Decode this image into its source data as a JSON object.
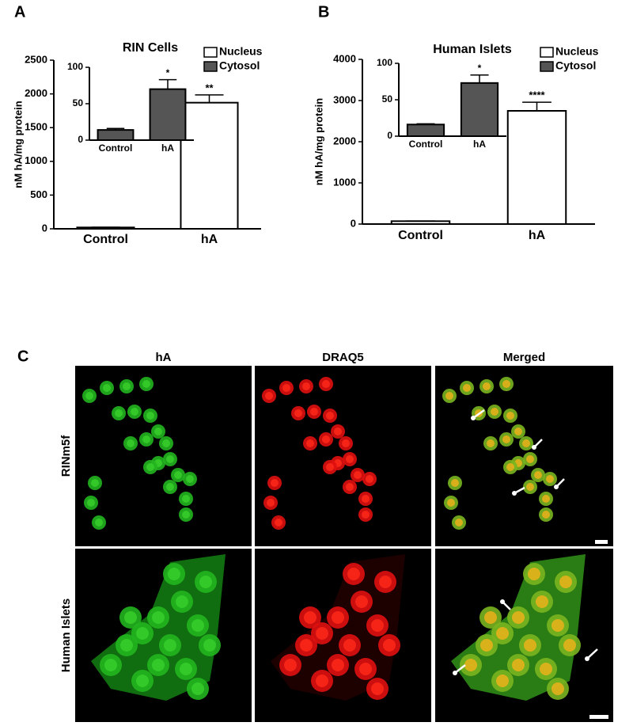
{
  "panel_labels": [
    "A",
    "B",
    "C"
  ],
  "chart_data": [
    {
      "type": "bar",
      "title": "RIN Cells",
      "y_label": "nM hA/mg protein",
      "categories": [
        "Control",
        "hA"
      ],
      "series": [
        {
          "name": "Nucleus",
          "color": "#ffffff",
          "values": [
            20,
            1870
          ],
          "errors": [
            3,
            115
          ],
          "significance": [
            null,
            "**"
          ]
        }
      ],
      "ylim": [
        0,
        2500
      ],
      "yticks": [
        0,
        500,
        1000,
        1500,
        2000,
        2500
      ],
      "legend": "upper right"
    },
    {
      "type": "bar",
      "categories": [
        "Control",
        "hA"
      ],
      "series": [
        {
          "name": "Cytosol",
          "color": "#555555",
          "values": [
            14,
            70
          ],
          "errors": [
            2,
            13
          ],
          "significance": [
            null,
            "*"
          ]
        }
      ],
      "ylim": [
        0,
        100
      ],
      "yticks": [
        0,
        50,
        100
      ]
    },
    {
      "type": "bar",
      "title": "Human Islets",
      "y_label": "nM hA/mg protein",
      "categories": [
        "Control",
        "hA"
      ],
      "series": [
        {
          "name": "Nucleus",
          "color": "#ffffff",
          "values": [
            70,
            2750
          ],
          "errors": [
            5,
            210
          ],
          "significance": [
            null,
            "****"
          ]
        }
      ],
      "ylim": [
        0,
        4000
      ],
      "yticks": [
        0,
        1000,
        2000,
        3000,
        4000
      ],
      "legend": "upper right"
    },
    {
      "type": "bar",
      "categories": [
        "Control",
        "hA"
      ],
      "series": [
        {
          "name": "Cytosol",
          "color": "#555555",
          "values": [
            16,
            73
          ],
          "errors": [
            1,
            11
          ],
          "significance": [
            null,
            "*"
          ]
        }
      ],
      "ylim": [
        0,
        100
      ],
      "yticks": [
        0,
        50,
        100
      ]
    }
  ],
  "panel_c": {
    "columns": [
      "hA",
      "DRAQ5",
      "Merged"
    ],
    "rows": [
      "RINm5f",
      "Human Islets"
    ]
  }
}
